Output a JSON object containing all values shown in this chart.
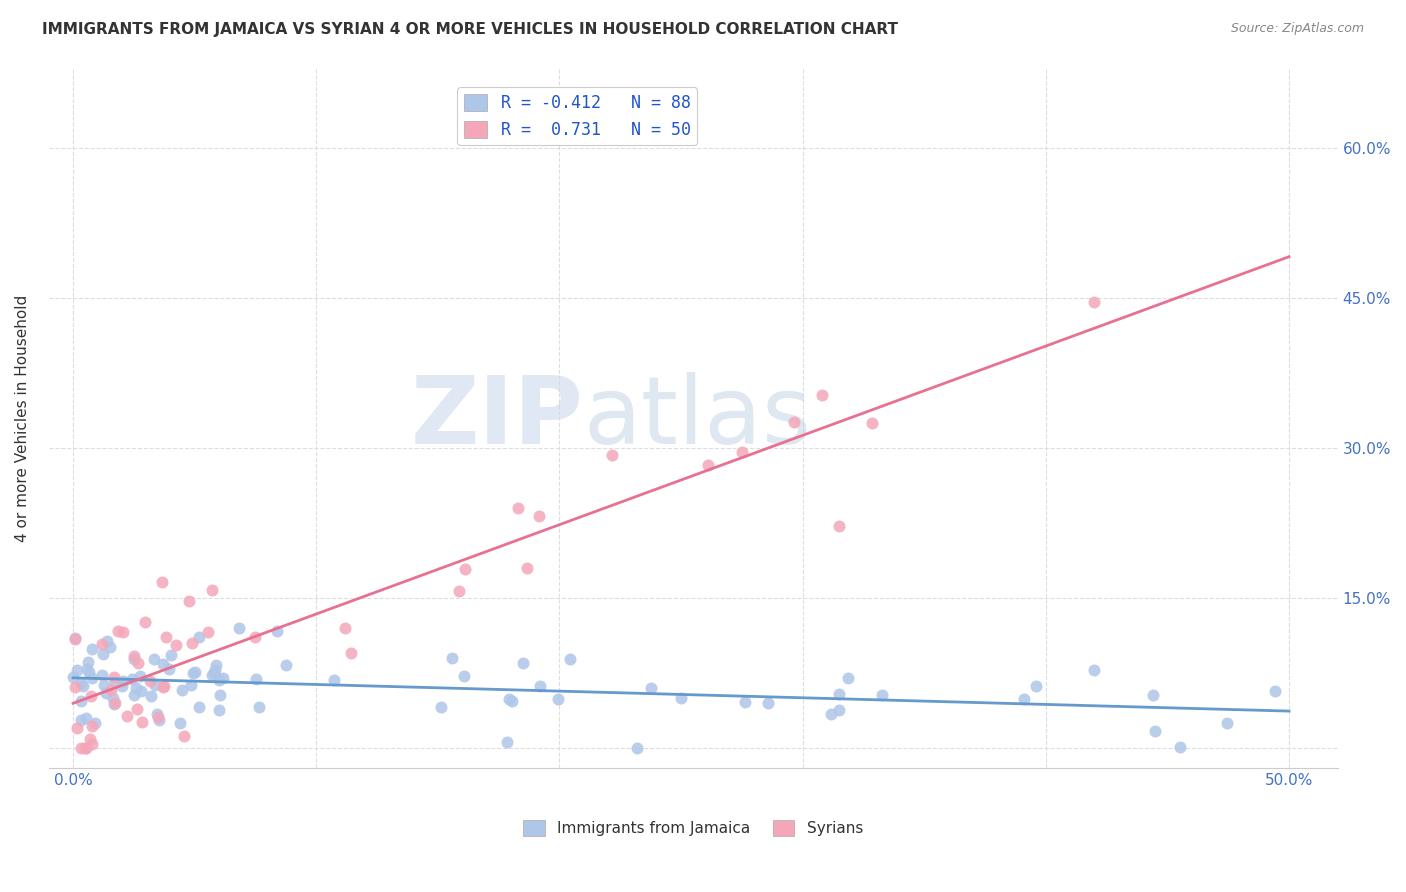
{
  "title": "IMMIGRANTS FROM JAMAICA VS SYRIAN 4 OR MORE VEHICLES IN HOUSEHOLD CORRELATION CHART",
  "source": "Source: ZipAtlas.com",
  "ylabel": "4 or more Vehicles in Household",
  "x_tick_pos": [
    0.0,
    0.1,
    0.2,
    0.3,
    0.4,
    0.5
  ],
  "x_tick_labels": [
    "0.0%",
    "",
    "",
    "",
    "",
    "50.0%"
  ],
  "y_tick_pos": [
    0.0,
    0.15,
    0.3,
    0.45,
    0.6
  ],
  "y_tick_labels": [
    "",
    "15.0%",
    "30.0%",
    "45.0%",
    "60.0%"
  ],
  "xlim": [
    -0.01,
    0.52
  ],
  "ylim": [
    -0.02,
    0.68
  ],
  "legend_entries": [
    {
      "label": "Immigrants from Jamaica",
      "R": "-0.412",
      "N": "88",
      "color": "#aec6e8"
    },
    {
      "label": "Syrians",
      "R": "0.731",
      "N": "50",
      "color": "#f4a7b9"
    }
  ],
  "background_color": "#ffffff",
  "grid_color": "#dddddd",
  "jamaica_color": "#aec6e8",
  "syria_color": "#f4a7b9",
  "jamaica_line_color": "#6699cc",
  "syria_line_color": "#e87090",
  "tick_label_color": "#4472c4",
  "title_color": "#333333",
  "source_color": "#888888",
  "ylabel_color": "#333333",
  "watermark_zip_color": "#c8d8ea",
  "watermark_atlas_color": "#b8cce0"
}
